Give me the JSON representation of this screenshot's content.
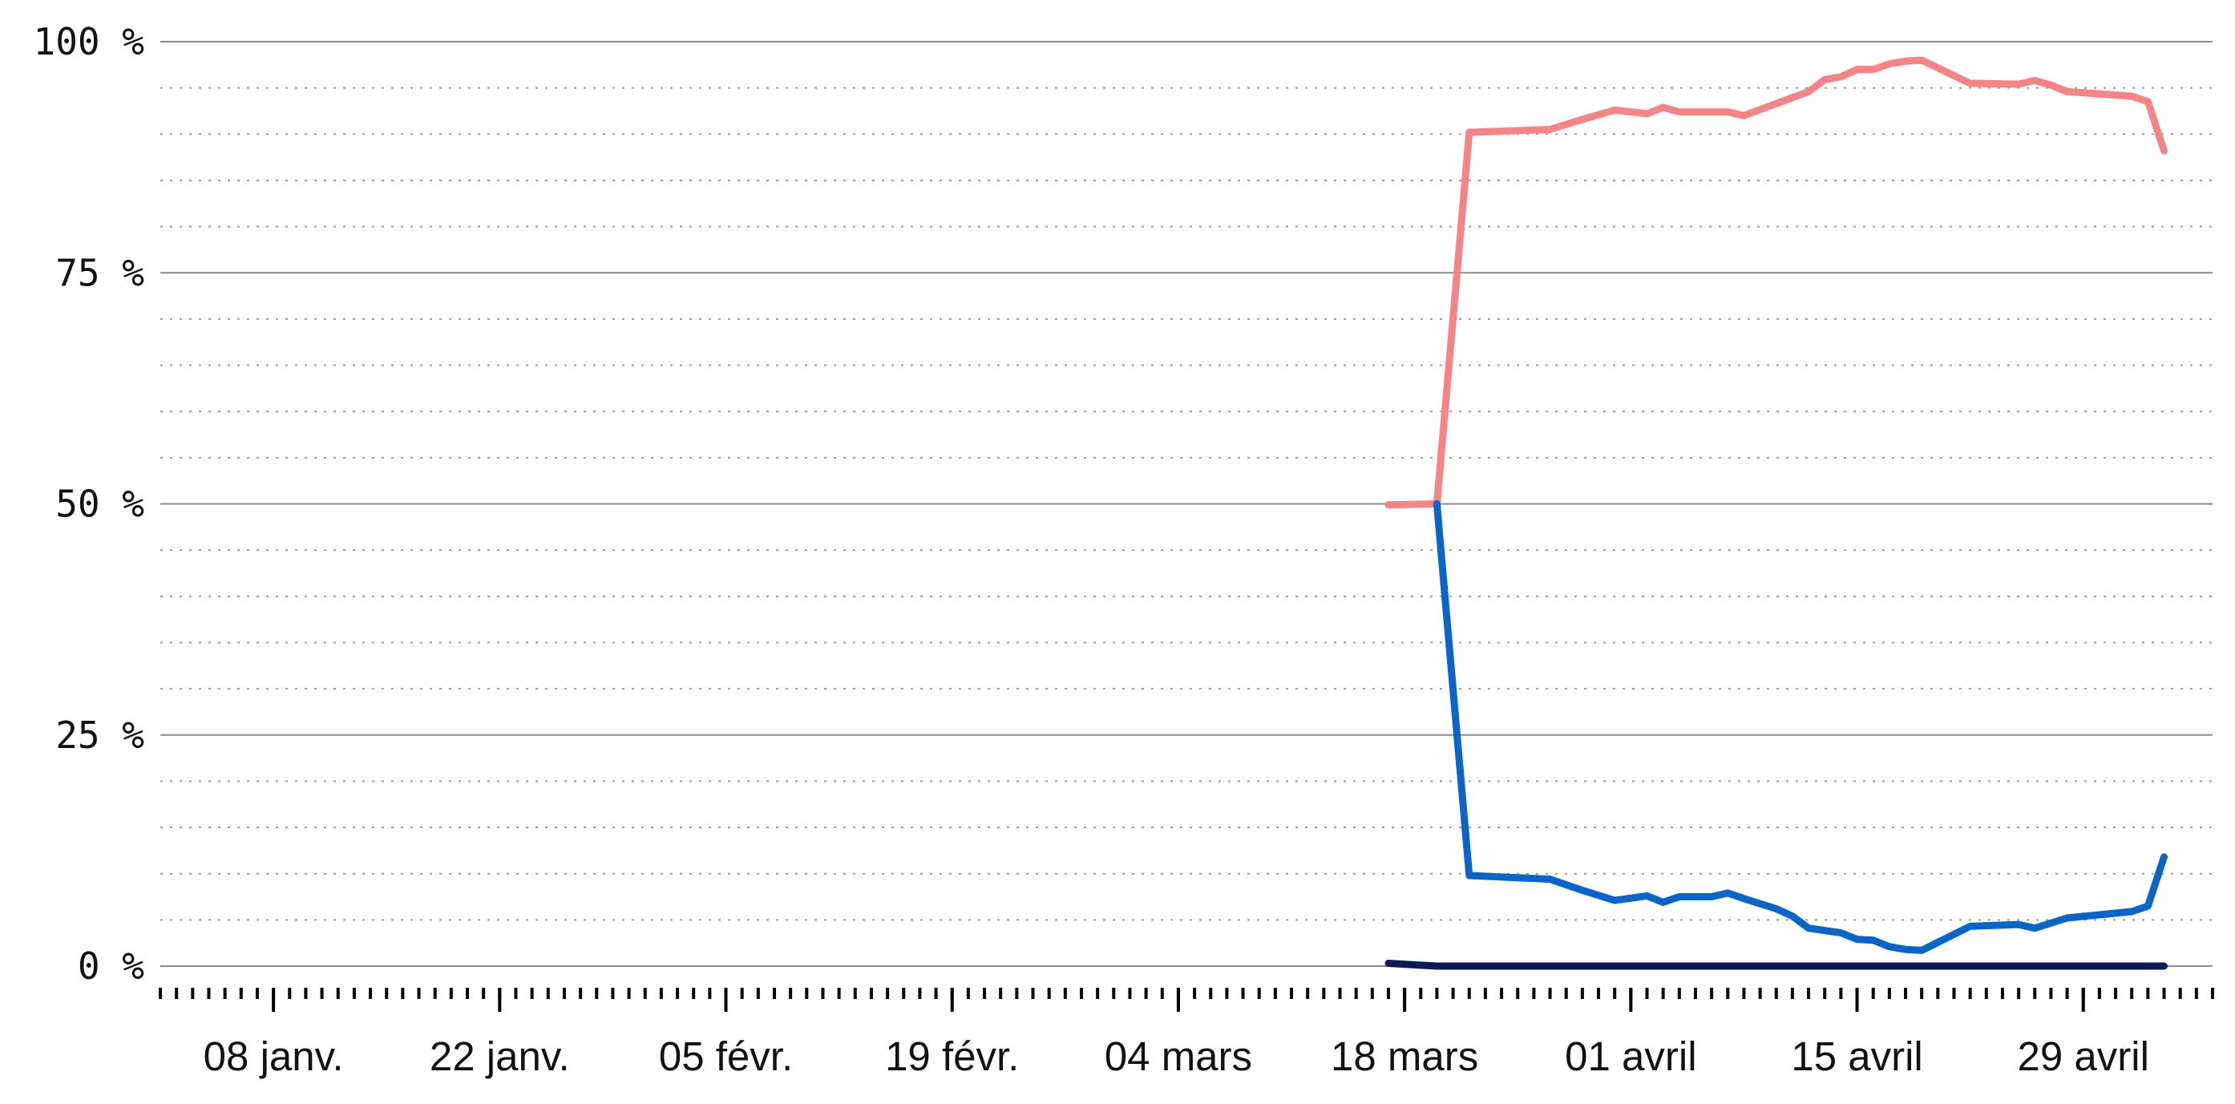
{
  "chart_data": {
    "type": "line",
    "title": "",
    "xlabel": "",
    "ylabel": "",
    "x_range": [
      "2024-01-01",
      "2024-05-07"
    ],
    "y_range": [
      0,
      100
    ],
    "y_ticks": [
      {
        "value": 0,
        "label": "0 %"
      },
      {
        "value": 25,
        "label": "25 %"
      },
      {
        "value": 50,
        "label": "50 %"
      },
      {
        "value": 75,
        "label": "75 %"
      },
      {
        "value": 100,
        "label": "100 %"
      }
    ],
    "y_minor_step": 5,
    "x_ticks": [
      {
        "date": "2024-01-08",
        "label": "08 janv."
      },
      {
        "date": "2024-01-22",
        "label": "22 janv."
      },
      {
        "date": "2024-02-05",
        "label": "05 févr."
      },
      {
        "date": "2024-02-19",
        "label": "19 févr."
      },
      {
        "date": "2024-03-04",
        "label": "04 mars"
      },
      {
        "date": "2024-03-18",
        "label": "18 mars"
      },
      {
        "date": "2024-04-01",
        "label": "01 avril"
      },
      {
        "date": "2024-04-15",
        "label": "15 avril"
      },
      {
        "date": "2024-04-29",
        "label": "29 avril"
      }
    ],
    "x_minor_tick": "daily",
    "grid": {
      "major": "solid",
      "minor": "dotted"
    },
    "legend": "none",
    "series": [
      {
        "color": "#f48586",
        "points": [
          [
            "2024-03-17",
            49.9
          ],
          [
            "2024-03-20",
            50.0
          ],
          [
            "2024-03-22",
            90.2
          ],
          [
            "2024-03-27",
            90.5
          ],
          [
            "2024-03-29",
            91.6
          ],
          [
            "2024-03-31",
            92.6
          ],
          [
            "2024-04-02",
            92.2
          ],
          [
            "2024-04-03",
            92.9
          ],
          [
            "2024-04-04",
            92.4
          ],
          [
            "2024-04-07",
            92.4
          ],
          [
            "2024-04-08",
            92.0
          ],
          [
            "2024-04-12",
            94.6
          ],
          [
            "2024-04-13",
            95.9
          ],
          [
            "2024-04-14",
            96.2
          ],
          [
            "2024-04-15",
            97.0
          ],
          [
            "2024-04-16",
            97.0
          ],
          [
            "2024-04-17",
            97.6
          ],
          [
            "2024-04-18",
            97.9
          ],
          [
            "2024-04-19",
            98.0
          ],
          [
            "2024-04-22",
            95.5
          ],
          [
            "2024-04-25",
            95.4
          ],
          [
            "2024-04-26",
            95.8
          ],
          [
            "2024-04-27",
            95.3
          ],
          [
            "2024-04-28",
            94.6
          ],
          [
            "2024-05-02",
            94.1
          ],
          [
            "2024-05-03",
            93.5
          ],
          [
            "2024-05-04",
            88.2
          ]
        ]
      },
      {
        "color": "#0a65c6",
        "points": [
          [
            "2024-03-20",
            50.0
          ],
          [
            "2024-03-22",
            9.8
          ],
          [
            "2024-03-27",
            9.4
          ],
          [
            "2024-03-29",
            8.2
          ],
          [
            "2024-03-31",
            7.1
          ],
          [
            "2024-04-02",
            7.6
          ],
          [
            "2024-04-03",
            6.9
          ],
          [
            "2024-04-04",
            7.5
          ],
          [
            "2024-04-06",
            7.5
          ],
          [
            "2024-04-07",
            7.9
          ],
          [
            "2024-04-08",
            7.3
          ],
          [
            "2024-04-10",
            6.2
          ],
          [
            "2024-04-11",
            5.4
          ],
          [
            "2024-04-12",
            4.1
          ],
          [
            "2024-04-14",
            3.6
          ],
          [
            "2024-04-15",
            2.9
          ],
          [
            "2024-04-16",
            2.8
          ],
          [
            "2024-04-17",
            2.1
          ],
          [
            "2024-04-18",
            1.8
          ],
          [
            "2024-04-19",
            1.7
          ],
          [
            "2024-04-22",
            4.3
          ],
          [
            "2024-04-25",
            4.5
          ],
          [
            "2024-04-26",
            4.1
          ],
          [
            "2024-04-28",
            5.2
          ],
          [
            "2024-05-02",
            5.9
          ],
          [
            "2024-05-03",
            6.5
          ],
          [
            "2024-05-04",
            11.8
          ]
        ]
      },
      {
        "color": "#0e1a55",
        "points": [
          [
            "2024-03-17",
            0.3
          ],
          [
            "2024-03-20",
            0.0
          ],
          [
            "2024-05-04",
            0.0
          ]
        ]
      }
    ]
  }
}
